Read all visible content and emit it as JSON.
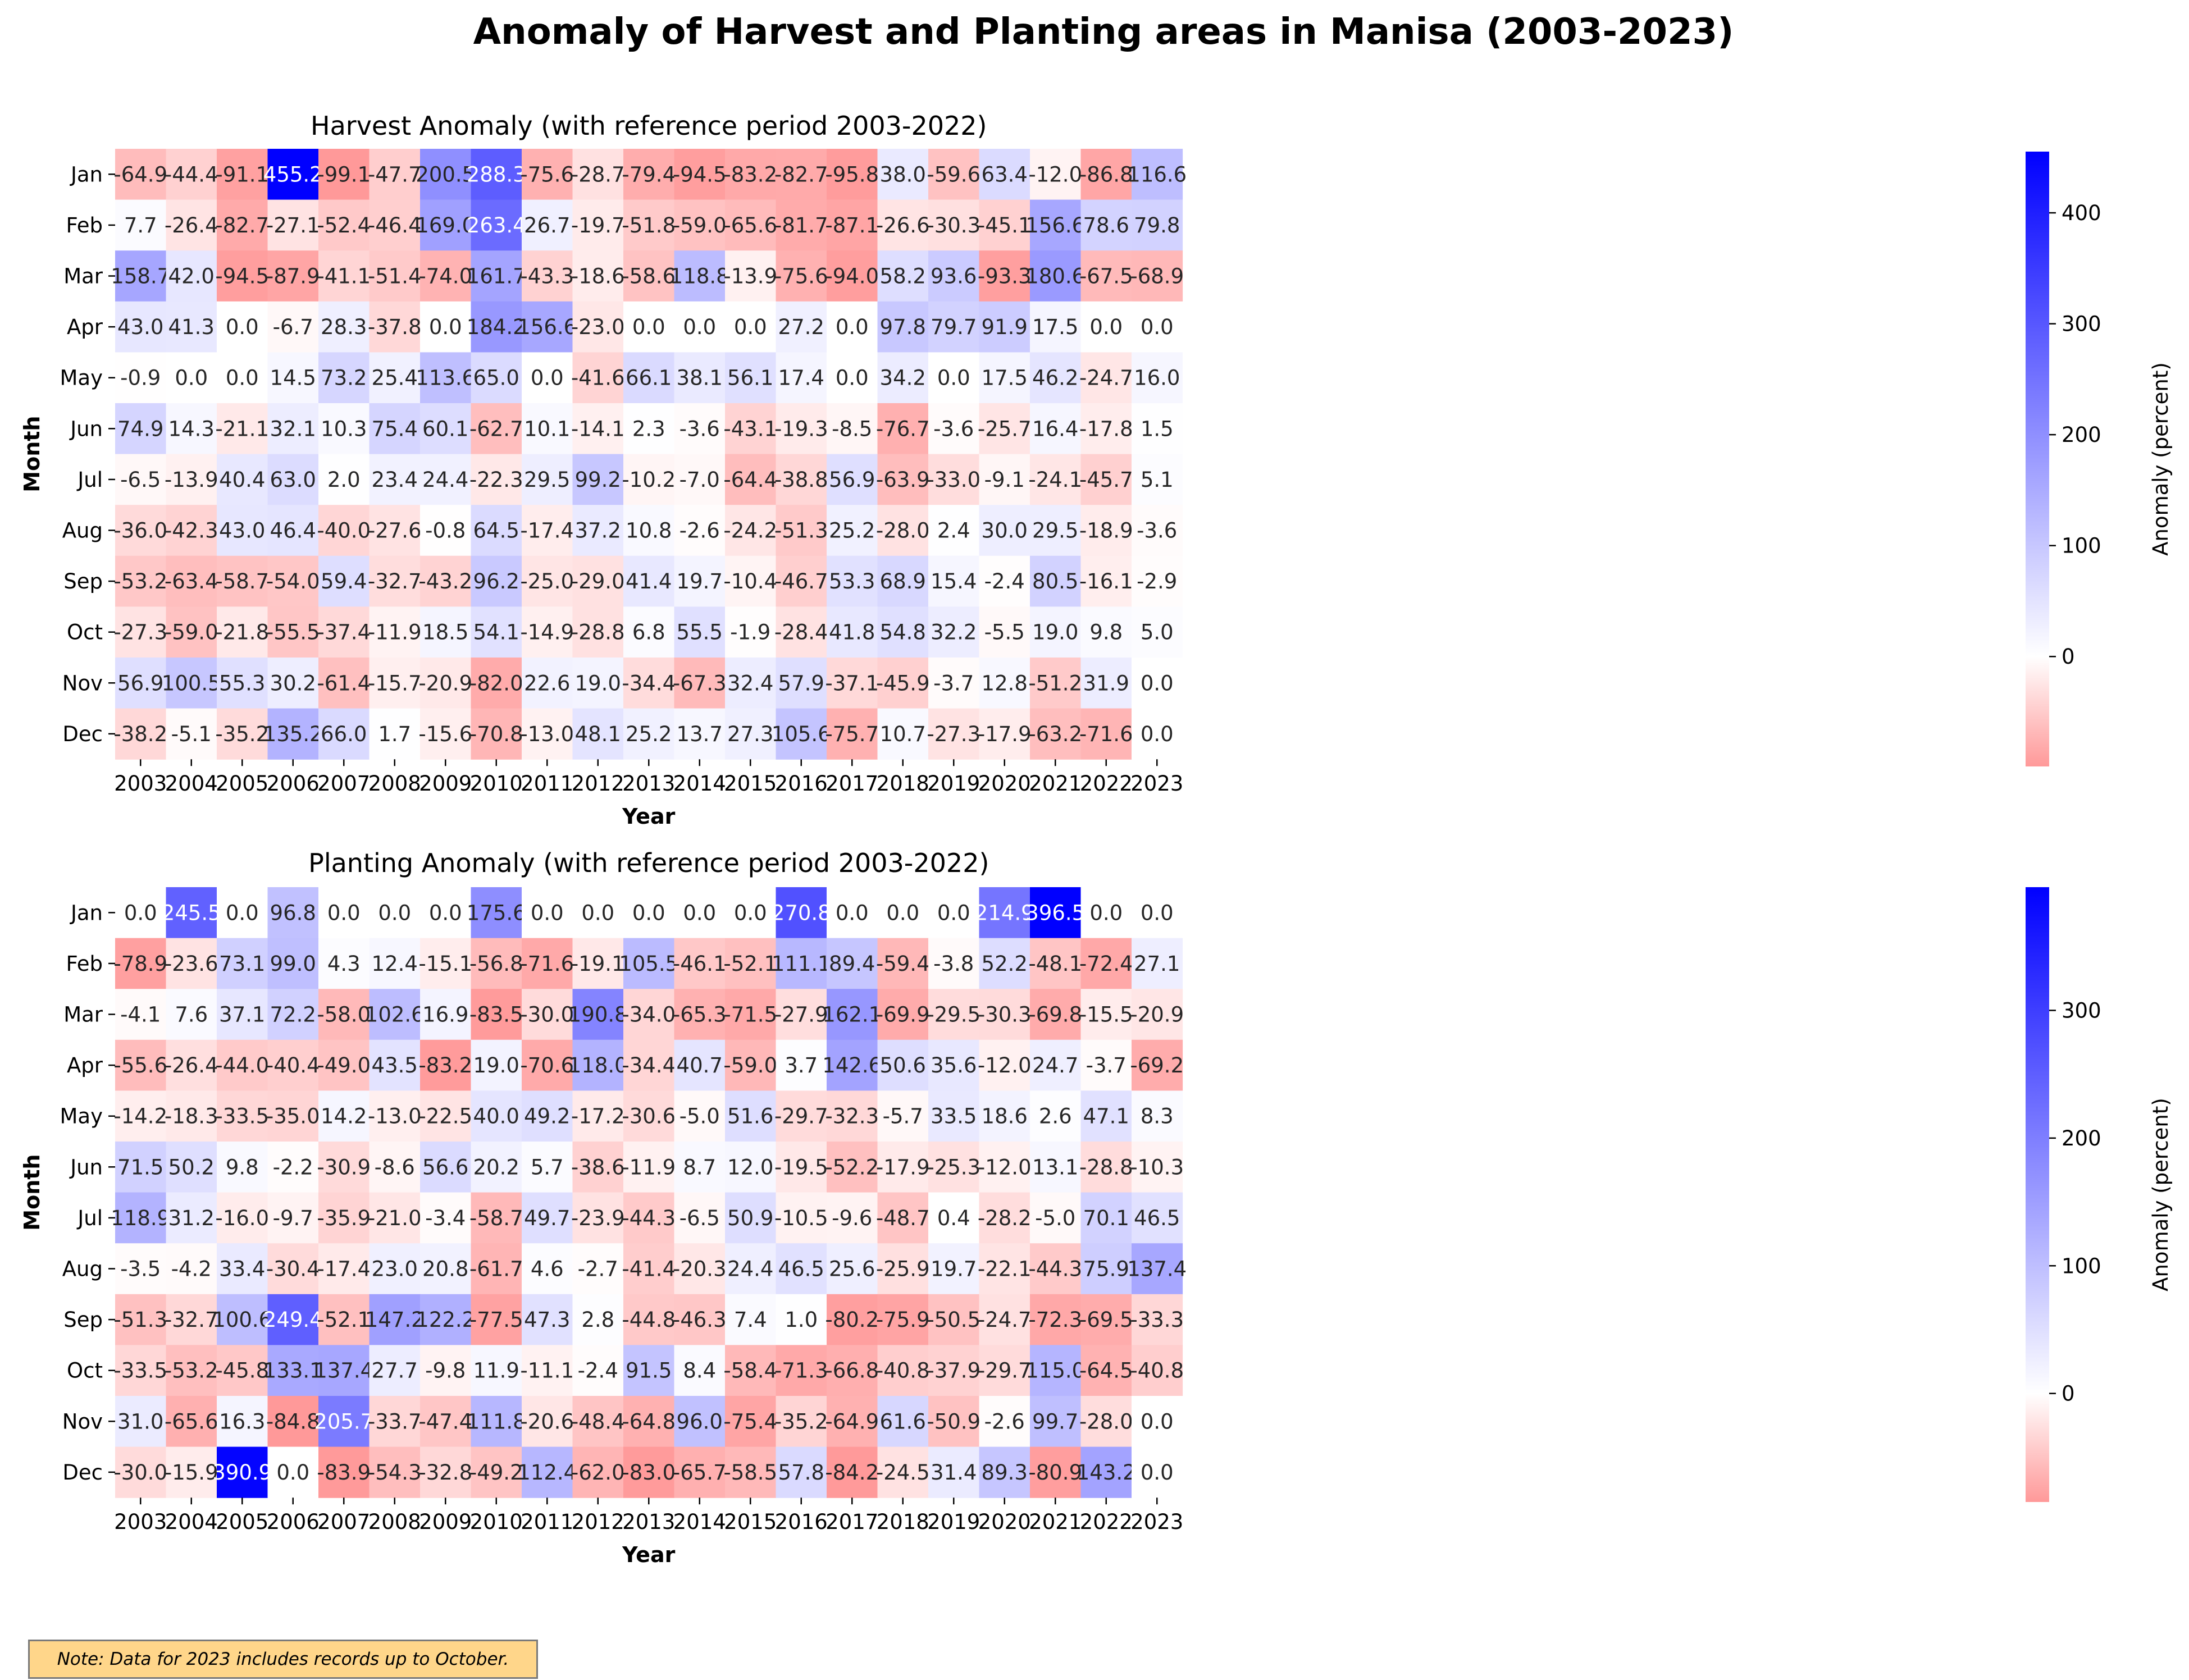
{
  "title": "Anomaly of Harvest and Planting areas in Manisa (2003-2023)",
  "note": "Note: Data for 2023 includes records up to October.",
  "chart_data": [
    {
      "type": "heatmap",
      "title": "Harvest Anomaly (with reference period 2003-2022)",
      "xlabel": "Year",
      "ylabel": "Month",
      "colorbar_label": "Anomaly (percent)",
      "colorbar_ticks": [
        "0",
        "100",
        "200",
        "300",
        "400"
      ],
      "colormap": {
        "low": "#ff9999",
        "mid": "#ffffff",
        "high": "#0000ff"
      },
      "vmin": -99.1,
      "vmax": 455.2,
      "x": [
        "2003",
        "2004",
        "2005",
        "2006",
        "2007",
        "2008",
        "2009",
        "2010",
        "2011",
        "2012",
        "2013",
        "2014",
        "2015",
        "2016",
        "2017",
        "2018",
        "2019",
        "2020",
        "2021",
        "2022",
        "2023"
      ],
      "y": [
        "Jan",
        "Feb",
        "Mar",
        "Apr",
        "May",
        "Jun",
        "Jul",
        "Aug",
        "Sep",
        "Oct",
        "Nov",
        "Dec"
      ],
      "values": [
        [
          -64.9,
          -44.4,
          -91.1,
          455.2,
          -99.1,
          -47.7,
          200.5,
          288.3,
          -75.6,
          -28.7,
          -79.4,
          -94.5,
          -83.2,
          -82.7,
          -95.8,
          38.0,
          -59.6,
          63.4,
          -12.0,
          -86.8,
          116.6
        ],
        [
          7.7,
          -26.4,
          -82.7,
          -27.1,
          -52.4,
          -46.4,
          169.0,
          263.4,
          26.7,
          -19.7,
          -51.8,
          -59.0,
          -65.6,
          -81.7,
          -87.1,
          -26.6,
          -30.3,
          -45.1,
          156.6,
          78.6,
          79.8
        ],
        [
          158.7,
          42.0,
          -94.5,
          -87.9,
          -41.1,
          -51.4,
          -74.0,
          161.7,
          -43.3,
          -18.6,
          -58.6,
          118.8,
          -13.9,
          -75.6,
          -94.0,
          58.2,
          93.6,
          -93.3,
          180.6,
          -67.5,
          -68.9
        ],
        [
          43.0,
          41.3,
          0.0,
          -6.7,
          28.3,
          -37.8,
          0.0,
          184.2,
          156.6,
          -23.0,
          0.0,
          0.0,
          0.0,
          27.2,
          0.0,
          97.8,
          79.7,
          91.9,
          17.5,
          0.0,
          0.0
        ],
        [
          -0.9,
          0.0,
          0.0,
          14.5,
          73.2,
          25.4,
          113.6,
          65.0,
          0.0,
          -41.6,
          66.1,
          38.1,
          56.1,
          17.4,
          0.0,
          34.2,
          0.0,
          17.5,
          46.2,
          -24.7,
          16.0
        ],
        [
          74.9,
          14.3,
          -21.1,
          32.1,
          10.3,
          75.4,
          60.1,
          -62.7,
          10.1,
          -14.1,
          2.3,
          -3.6,
          -43.1,
          -19.3,
          -8.5,
          -76.7,
          -3.6,
          -25.7,
          16.4,
          -17.8,
          1.5
        ],
        [
          -6.5,
          -13.9,
          40.4,
          63.0,
          2.0,
          23.4,
          24.4,
          -22.3,
          29.5,
          99.2,
          -10.2,
          -7.0,
          -64.4,
          -38.8,
          56.9,
          -63.9,
          -33.0,
          -9.1,
          -24.1,
          -45.7,
          5.1
        ],
        [
          -36.0,
          -42.3,
          43.0,
          46.4,
          -40.0,
          -27.6,
          -0.8,
          64.5,
          -17.4,
          37.2,
          10.8,
          -2.6,
          -24.2,
          -51.3,
          25.2,
          -28.0,
          2.4,
          30.0,
          29.5,
          -18.9,
          -3.6
        ],
        [
          -53.2,
          -63.4,
          -58.7,
          -54.0,
          59.4,
          -32.7,
          -43.2,
          96.2,
          -25.0,
          -29.0,
          41.4,
          19.7,
          -10.4,
          -46.7,
          53.3,
          68.9,
          15.4,
          -2.4,
          80.5,
          -16.1,
          -2.9
        ],
        [
          -27.3,
          -59.0,
          -21.8,
          -55.5,
          -37.4,
          -11.9,
          18.5,
          54.1,
          -14.9,
          -28.8,
          6.8,
          55.5,
          -1.9,
          -28.4,
          41.8,
          54.8,
          32.2,
          -5.5,
          19.0,
          9.8,
          5.0
        ],
        [
          56.9,
          100.5,
          55.3,
          30.2,
          -61.4,
          -15.7,
          -20.9,
          -82.0,
          22.6,
          19.0,
          -34.4,
          -67.3,
          32.4,
          57.9,
          -37.1,
          -45.9,
          -3.7,
          12.8,
          -51.2,
          31.9,
          0.0
        ],
        [
          -38.2,
          -5.1,
          -35.2,
          135.2,
          66.0,
          1.7,
          -15.6,
          -70.8,
          -13.0,
          48.1,
          25.2,
          13.7,
          27.3,
          105.6,
          -75.7,
          10.7,
          -27.3,
          -17.9,
          -63.2,
          -71.6,
          0.0
        ]
      ]
    },
    {
      "type": "heatmap",
      "title": "Planting Anomaly (with reference period 2003-2022)",
      "xlabel": "Year",
      "ylabel": "Month",
      "colorbar_label": "Anomaly (percent)",
      "colorbar_ticks": [
        "0",
        "100",
        "200",
        "300"
      ],
      "colormap": {
        "low": "#ff9999",
        "mid": "#ffffff",
        "high": "#0000ff"
      },
      "vmin": -85.0,
      "vmax": 396.5,
      "x": [
        "2003",
        "2004",
        "2005",
        "2006",
        "2007",
        "2008",
        "2009",
        "2010",
        "2011",
        "2012",
        "2013",
        "2014",
        "2015",
        "2016",
        "2017",
        "2018",
        "2019",
        "2020",
        "2021",
        "2022",
        "2023"
      ],
      "y": [
        "Jan",
        "Feb",
        "Mar",
        "Apr",
        "May",
        "Jun",
        "Jul",
        "Aug",
        "Sep",
        "Oct",
        "Nov",
        "Dec"
      ],
      "values": [
        [
          0.0,
          245.5,
          0.0,
          96.8,
          0.0,
          0.0,
          0.0,
          175.6,
          0.0,
          0.0,
          0.0,
          0.0,
          0.0,
          270.8,
          0.0,
          0.0,
          0.0,
          214.9,
          396.5,
          0.0,
          0.0
        ],
        [
          -78.9,
          -23.6,
          73.1,
          99.0,
          4.3,
          12.4,
          -15.1,
          -56.8,
          -71.6,
          -19.1,
          105.5,
          -46.1,
          -52.1,
          111.1,
          89.4,
          -59.4,
          -3.8,
          52.2,
          -48.1,
          -72.4,
          27.1
        ],
        [
          -4.1,
          7.6,
          37.1,
          72.2,
          -58.0,
          102.6,
          16.9,
          -83.5,
          -30.0,
          190.8,
          -34.0,
          -65.3,
          -71.5,
          -27.9,
          162.1,
          -69.9,
          -29.5,
          -30.3,
          -69.8,
          -15.5,
          -20.9
        ],
        [
          -55.6,
          -26.4,
          -44.0,
          -40.4,
          -49.0,
          43.5,
          -83.2,
          19.0,
          -70.6,
          118.0,
          -34.4,
          40.7,
          -59.0,
          3.7,
          142.6,
          50.6,
          35.6,
          -12.0,
          24.7,
          -3.7,
          -69.2
        ],
        [
          -14.2,
          -18.3,
          -33.5,
          -35.0,
          14.2,
          -13.0,
          -22.5,
          40.0,
          49.2,
          -17.2,
          -30.6,
          -5.0,
          51.6,
          -29.7,
          -32.3,
          -5.7,
          33.5,
          18.6,
          2.6,
          47.1,
          8.3
        ],
        [
          71.5,
          50.2,
          9.8,
          -2.2,
          -30.9,
          -8.6,
          56.6,
          20.2,
          5.7,
          -38.6,
          -11.9,
          8.7,
          12.0,
          -19.5,
          -52.2,
          -17.9,
          -25.3,
          -12.0,
          13.1,
          -28.8,
          -10.3
        ],
        [
          118.9,
          31.2,
          -16.0,
          -9.7,
          -35.9,
          -21.0,
          -3.4,
          -58.7,
          49.7,
          -23.9,
          -44.3,
          -6.5,
          50.9,
          -10.5,
          -9.6,
          -48.7,
          0.4,
          -28.2,
          -5.0,
          70.1,
          46.5
        ],
        [
          -3.5,
          -4.2,
          33.4,
          -30.4,
          -17.4,
          23.0,
          20.8,
          -61.7,
          4.6,
          -2.7,
          -41.4,
          -20.3,
          24.4,
          46.5,
          25.6,
          -25.9,
          19.7,
          -22.1,
          -44.3,
          75.9,
          137.4
        ],
        [
          -51.3,
          -32.7,
          100.6,
          249.4,
          -52.1,
          147.2,
          122.2,
          -77.5,
          47.3,
          2.8,
          -44.8,
          -46.3,
          7.4,
          1.0,
          -80.2,
          -75.9,
          -50.5,
          -24.7,
          -72.3,
          -69.5,
          -33.3
        ],
        [
          -33.5,
          -53.2,
          -45.8,
          133.1,
          137.4,
          27.7,
          -9.8,
          11.9,
          -11.1,
          -2.4,
          91.5,
          8.4,
          -58.4,
          -71.3,
          -66.8,
          -40.8,
          -37.9,
          -29.7,
          115.0,
          -64.5,
          -40.8
        ],
        [
          31.0,
          -65.6,
          16.3,
          -84.8,
          205.7,
          -33.7,
          -47.4,
          111.8,
          -20.6,
          -48.4,
          -64.8,
          96.0,
          -75.4,
          -35.2,
          -64.9,
          61.6,
          -50.9,
          -2.6,
          99.7,
          -28.0,
          0.0
        ],
        [
          -30.0,
          -15.9,
          390.9,
          0.0,
          -83.9,
          -54.3,
          -32.8,
          -49.2,
          112.4,
          -62.0,
          -83.0,
          -65.7,
          -58.5,
          57.8,
          -84.2,
          -24.5,
          31.4,
          89.3,
          -80.9,
          143.2,
          0.0
        ]
      ]
    }
  ]
}
